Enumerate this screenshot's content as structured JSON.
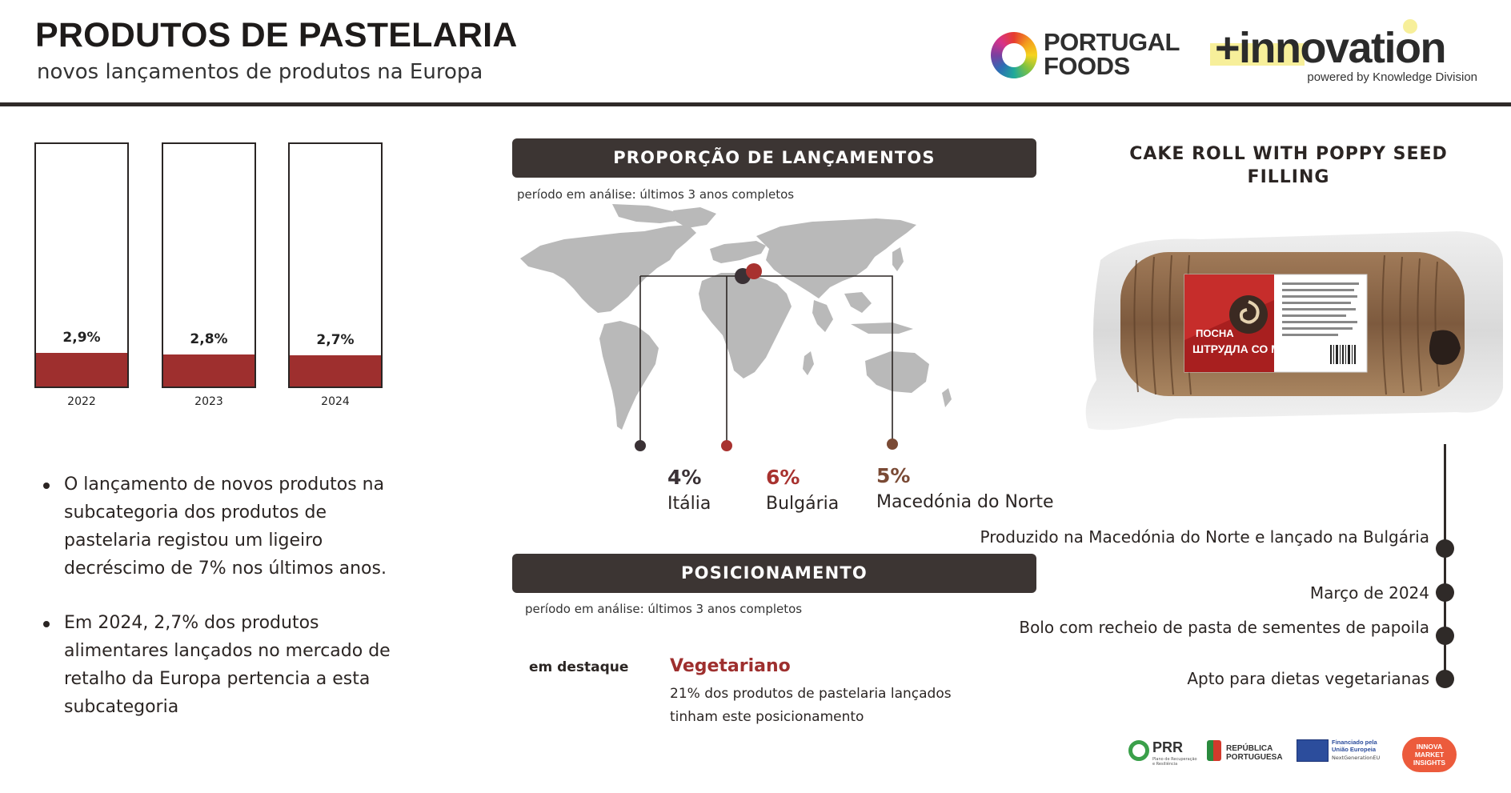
{
  "header": {
    "title": "PRODUTOS DE PASTELARIA",
    "subtitle": "novos lançamentos de produtos na Europa",
    "logo_portugal_foods": "PORTUGAL FOODS",
    "logo_innovation": "+innovation",
    "logo_innovation_sub": "powered by Knowledge Division"
  },
  "bar_chart": {
    "type": "bar",
    "categories": [
      "2022",
      "2023",
      "2024"
    ],
    "values": [
      2.9,
      2.8,
      2.7
    ],
    "value_labels": [
      "2,9%",
      "2,8%",
      "2,7%"
    ],
    "unit": "%",
    "color": "#9e2f2e"
  },
  "bullets": [
    "O lançamento de novos produtos na subcategoria dos produtos de pastelaria registou um ligeiro decréscimo de 7% nos últimos anos.",
    "Em 2024, 2,7% dos produtos alimentares lançados no mercado de retalho da Europa pertencia a esta subcategoria"
  ],
  "launches": {
    "title": "PROPORÇÃO DE LANÇAMENTOS",
    "period": "período em análise: últimos 3 anos completos",
    "countries": [
      {
        "pct": "4%",
        "name": "Itália",
        "color": "#3a3135"
      },
      {
        "pct": "6%",
        "name": "Bulgária",
        "color": "#a8322f"
      },
      {
        "pct": "5%",
        "name": "Macedónia do Norte",
        "color": "#7a4a35"
      }
    ]
  },
  "positioning": {
    "title": "POSICIONAMENTO",
    "period": "período em análise: últimos 3 anos completos",
    "highlight_label": "em destaque",
    "highlight_title": "Vegetariano",
    "highlight_desc": "21% dos produtos de pastelaria lançados tinham este posicionamento"
  },
  "product": {
    "title": "CAKE ROLL WITH POPPY SEED FILLING",
    "package_brand": "ПОСНА",
    "package_name": "ШТРУДЛА СО МАК",
    "facts": [
      "Produzido na Macedónia do Norte e lançado na Bulgária",
      "Março de 2024",
      "Bolo com recheio de pasta de sementes de papoila",
      "Apto para dietas vegetarianas"
    ]
  },
  "footer": {
    "prr": "PRR",
    "prr_sub": "Plano de Recuperação e Resiliência",
    "republica": "REPÚBLICA PORTUGUESA",
    "eu": "Financiado pela União Europeia",
    "eu_sub": "NextGenerationEU",
    "innova": "INNOVA MARKET INSIGHTS"
  }
}
